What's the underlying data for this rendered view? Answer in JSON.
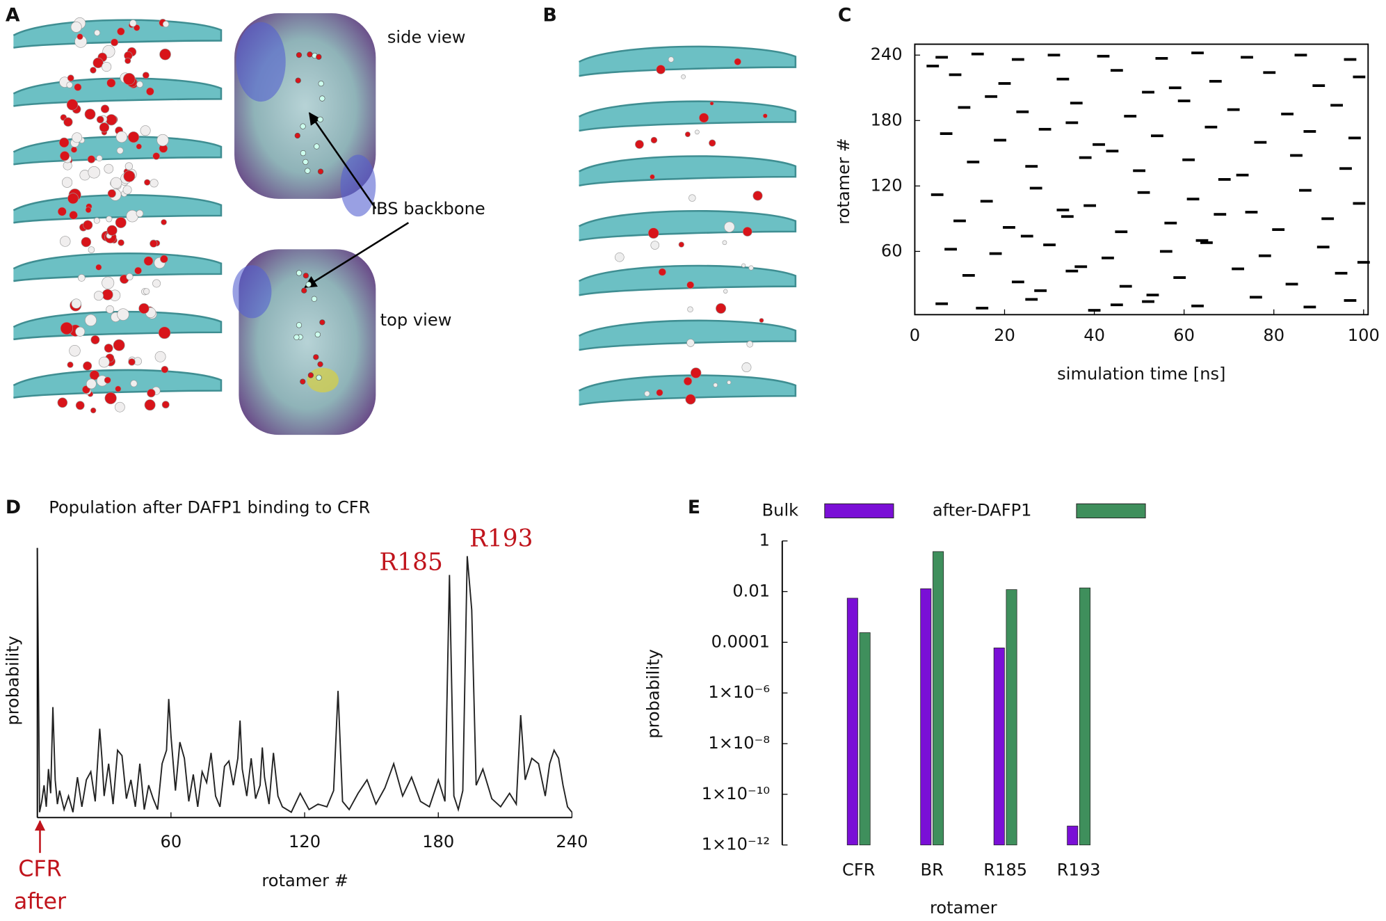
{
  "panels": {
    "labels": [
      "A",
      "B",
      "C",
      "D",
      "E"
    ],
    "side_view": "side view",
    "ibs": "IBS backbone",
    "top_view": "top view"
  },
  "chart_data": [
    {
      "type": "scatter",
      "xlabel": "simulation time [ns]",
      "ylabel": "rotamer #",
      "color": "#000000",
      "x": [
        6,
        14,
        23,
        31,
        42,
        55,
        63,
        74,
        86,
        97,
        9,
        20,
        33,
        45,
        58,
        67,
        79,
        90,
        99,
        4,
        11,
        24,
        36,
        48,
        60,
        71,
        83,
        94,
        17,
        52,
        7,
        19,
        29,
        41,
        54,
        66,
        77,
        88,
        98,
        35,
        13,
        26,
        38,
        50,
        61,
        73,
        85,
        96,
        44,
        69,
        5,
        16,
        27,
        39,
        51,
        62,
        75,
        87,
        99,
        33,
        10,
        21,
        34,
        46,
        57,
        68,
        81,
        92,
        25,
        64,
        8,
        18,
        30,
        43,
        56,
        65,
        78,
        91,
        100,
        37,
        12,
        23,
        35,
        47,
        59,
        72,
        84,
        95,
        28,
        53,
        6,
        15,
        26,
        40,
        52,
        63,
        76,
        88,
        97,
        45
      ],
      "y": [
        238,
        241,
        236,
        240,
        239,
        237,
        242,
        238,
        240,
        236,
        222,
        214,
        218,
        226,
        210,
        216,
        224,
        212,
        220,
        230,
        192,
        188,
        196,
        184,
        198,
        190,
        186,
        194,
        202,
        206,
        168,
        162,
        172,
        158,
        166,
        174,
        160,
        170,
        164,
        178,
        142,
        138,
        146,
        134,
        144,
        130,
        148,
        136,
        152,
        126,
        112,
        106,
        118,
        102,
        114,
        108,
        96,
        116,
        104,
        98,
        88,
        82,
        92,
        78,
        86,
        94,
        80,
        90,
        74,
        70,
        62,
        58,
        66,
        54,
        60,
        68,
        56,
        64,
        50,
        46,
        38,
        32,
        42,
        28,
        36,
        44,
        30,
        40,
        24,
        20,
        12,
        8,
        16,
        6,
        14,
        10,
        18,
        9,
        15,
        11
      ],
      "xlim": [
        0,
        101
      ],
      "xticks": [
        0,
        20,
        40,
        60,
        80,
        100
      ],
      "ylim": [
        2,
        250
      ],
      "yticks": [
        60,
        120,
        180,
        240
      ]
    },
    {
      "type": "line",
      "title": "Population after DAFP1 binding to CFR",
      "xlabel": "rotamer #",
      "ylabel": "probability",
      "color": "#222222",
      "annotations": [
        "R185",
        "R193",
        "CFR",
        "after"
      ],
      "x": [
        0,
        1,
        2,
        3,
        4,
        5,
        6,
        7,
        8,
        9,
        10,
        12,
        14,
        16,
        18,
        20,
        22,
        24,
        26,
        28,
        29,
        30,
        32,
        34,
        36,
        38,
        40,
        42,
        44,
        46,
        48,
        50,
        52,
        54,
        56,
        58,
        59,
        60,
        62,
        64,
        66,
        68,
        70,
        72,
        74,
        76,
        78,
        80,
        82,
        84,
        86,
        88,
        90,
        91,
        92,
        94,
        96,
        98,
        100,
        101,
        102,
        104,
        106,
        108,
        110,
        114,
        118,
        122,
        126,
        130,
        133,
        135,
        137,
        140,
        144,
        148,
        152,
        156,
        160,
        164,
        168,
        172,
        176,
        180,
        183,
        185,
        187,
        189,
        191,
        193,
        195,
        197,
        200,
        204,
        208,
        212,
        215,
        217,
        219,
        222,
        225,
        228,
        230,
        232,
        234,
        236,
        238,
        240
      ],
      "values": [
        100,
        2,
        6,
        12,
        4,
        18,
        9,
        41,
        14,
        5,
        10,
        3,
        8,
        2,
        15,
        4,
        14,
        17,
        6,
        33,
        22,
        8,
        20,
        5,
        25,
        23,
        7,
        14,
        4,
        20,
        3,
        12,
        7,
        3,
        20,
        25,
        44,
        30,
        10,
        28,
        22,
        6,
        16,
        4,
        17,
        13,
        24,
        8,
        4,
        19,
        21,
        12,
        22,
        36,
        18,
        8,
        22,
        7,
        12,
        26,
        15,
        5,
        24,
        8,
        4,
        2,
        9,
        3,
        5,
        4,
        10,
        47,
        6,
        3,
        9,
        14,
        5,
        11,
        20,
        8,
        15,
        6,
        4,
        14,
        6,
        90,
        8,
        3,
        10,
        97,
        77,
        12,
        18,
        7,
        4,
        9,
        5,
        38,
        14,
        22,
        20,
        8,
        20,
        25,
        22,
        12,
        4,
        2
      ],
      "xlim": [
        0,
        240
      ],
      "xticks": [
        60,
        120,
        180,
        240
      ],
      "ylim": [
        0,
        100
      ]
    },
    {
      "type": "bar",
      "xlabel": "rotamer",
      "ylabel": "probability",
      "log_scale": true,
      "categories": [
        "CFR",
        "BR",
        "R185",
        "R193"
      ],
      "series": [
        {
          "name": "Bulk",
          "color": "#7a0fd6",
          "values": [
            0.0055,
            0.013,
            6e-05,
            5.6e-12
          ]
        },
        {
          "name": "after-DAFP1",
          "color": "#3f8f5c",
          "values": [
            0.00024,
            0.38,
            0.012,
            0.014
          ]
        }
      ],
      "ylim": [
        1e-12,
        1
      ],
      "yticks": [
        1,
        0.01,
        0.0001,
        {
          "value": 1e-06,
          "label": "1×10⁻⁶"
        },
        {
          "value": 1e-08,
          "label": "1×10⁻⁸"
        },
        {
          "value": 1e-10,
          "label": "1×10⁻¹⁰"
        },
        {
          "value": 1e-12,
          "label": "1×10⁻¹²"
        }
      ]
    }
  ]
}
